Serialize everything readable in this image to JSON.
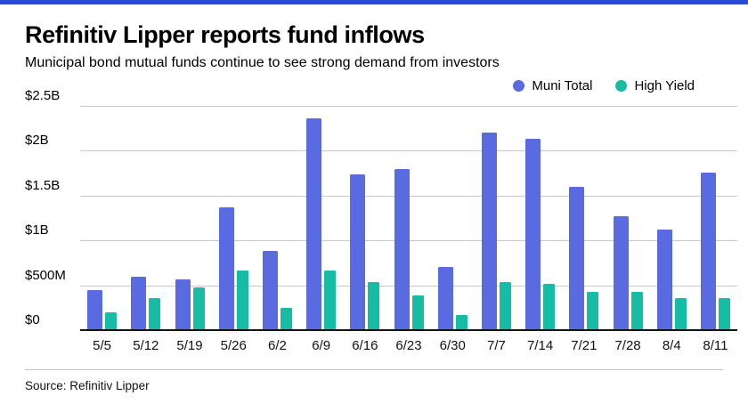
{
  "accent_color": "#2b4bdb",
  "header": {
    "title": "Refinitiv Lipper reports fund inflows",
    "subtitle": "Municipal bond mutual funds continue to see strong demand from investors"
  },
  "footer": {
    "source": "Source: Refinitiv Lipper"
  },
  "chart_data": {
    "type": "bar",
    "title": "Refinitiv Lipper reports fund inflows",
    "subtitle": "Municipal bond mutual funds continue to see strong demand from investors",
    "units": "USD billions",
    "categories": [
      "5/5",
      "5/12",
      "5/19",
      "5/26",
      "6/2",
      "6/9",
      "6/16",
      "6/23",
      "6/30",
      "7/7",
      "7/14",
      "7/21",
      "7/28",
      "8/4",
      "8/11"
    ],
    "series": [
      {
        "name": "Muni Total",
        "color": "#5a6be1",
        "values": [
          0.45,
          0.6,
          0.57,
          1.37,
          0.88,
          2.36,
          1.74,
          1.8,
          0.7,
          2.2,
          2.13,
          1.6,
          1.27,
          1.12,
          1.76
        ]
      },
      {
        "name": "High Yield",
        "color": "#16bca4",
        "values": [
          0.2,
          0.36,
          0.48,
          0.66,
          0.25,
          0.66,
          0.54,
          0.39,
          0.17,
          0.54,
          0.52,
          0.43,
          0.43,
          0.36,
          0.36
        ]
      }
    ],
    "ytick_labels": [
      "$2.5B",
      "$2B",
      "$1.5B",
      "$1B",
      "$500M",
      "$0"
    ],
    "ytick_values": [
      2.5,
      2,
      1.5,
      1,
      0.5,
      0
    ],
    "ylim": [
      0,
      2.5
    ],
    "grid": true,
    "legend_position": "top-right"
  }
}
